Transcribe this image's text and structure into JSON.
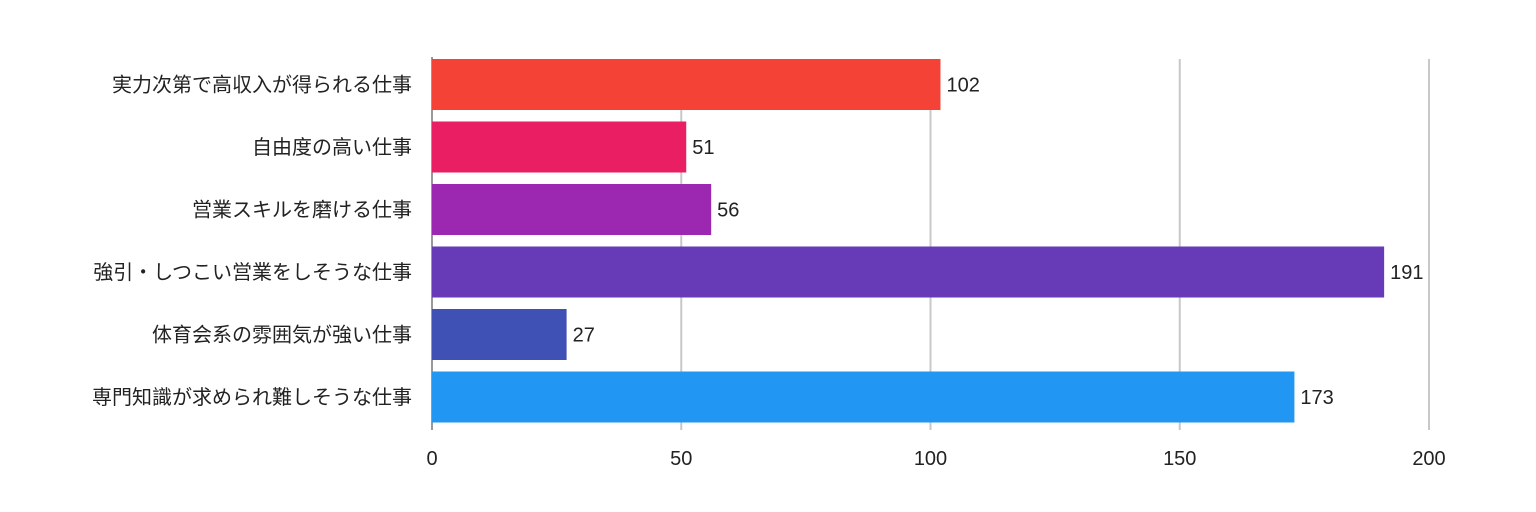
{
  "chart_data": {
    "type": "bar",
    "orientation": "horizontal",
    "title": "",
    "xlabel": "",
    "ylabel": "",
    "xlim": [
      0,
      200
    ],
    "ticks": [
      0,
      50,
      100,
      150,
      200
    ],
    "grid": true,
    "legend": "none",
    "categories": [
      "実力次第で高収入が得られる仕事",
      "自由度の高い仕事",
      "営業スキルを磨ける仕事",
      "強引・しつこい営業をしそうな仕事",
      "体育会系の雰囲気が強い仕事",
      "専門知識が求められ難しそうな仕事"
    ],
    "values": [
      102,
      51,
      56,
      191,
      27,
      173
    ],
    "colors": [
      "#f44336",
      "#e91e63",
      "#9c27b0",
      "#673ab7",
      "#3f51b5",
      "#2196f3"
    ]
  }
}
